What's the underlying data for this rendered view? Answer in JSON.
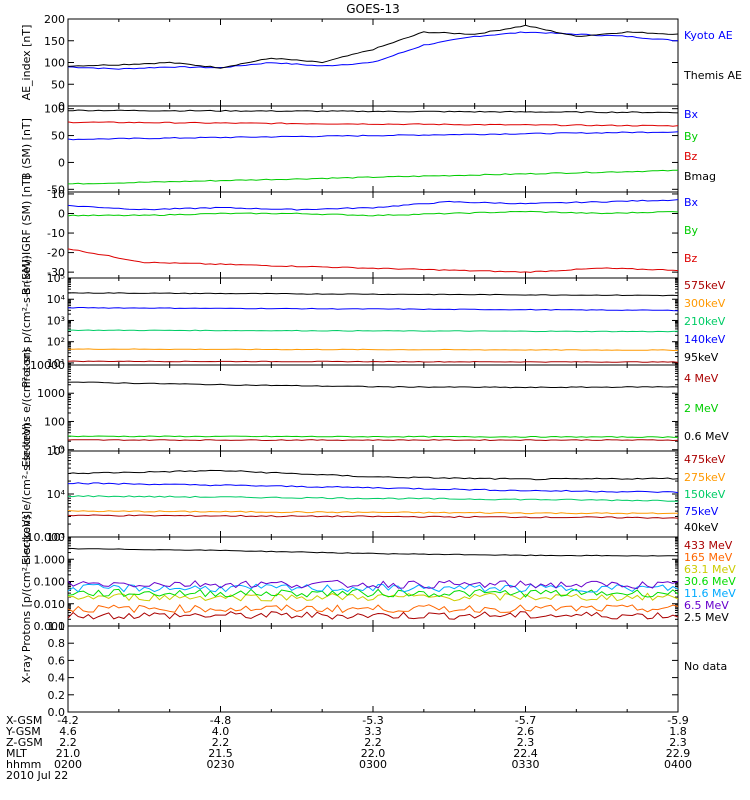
{
  "title": "GOES-13",
  "time_range": {
    "start": "0200",
    "end": "0400"
  },
  "chart_data": [
    {
      "type": "line",
      "ylabel": "AE_index [nT]",
      "yscale": "linear",
      "ylim": [
        0,
        200
      ],
      "yticks": [
        "0",
        "50",
        "100",
        "150",
        "200"
      ],
      "series": [
        {
          "name": "Kyoto AE",
          "color": "#0000ff",
          "x": [
            "0200",
            "0210",
            "0220",
            "0230",
            "0240",
            "0250",
            "0300",
            "0310",
            "0320",
            "0330",
            "0340",
            "0350",
            "0400"
          ],
          "values": [
            90,
            85,
            90,
            88,
            100,
            92,
            100,
            140,
            160,
            170,
            165,
            160,
            150
          ]
        },
        {
          "name": "Themis AE",
          "color": "#000000",
          "x": [
            "0200",
            "0210",
            "0220",
            "0230",
            "0240",
            "0250",
            "0300",
            "0310",
            "0320",
            "0330",
            "0340",
            "0350",
            "0400"
          ],
          "values": [
            92,
            95,
            100,
            88,
            110,
            100,
            130,
            170,
            165,
            185,
            160,
            170,
            165
          ]
        }
      ]
    },
    {
      "type": "line",
      "ylabel": "B (SM) [nT]",
      "yscale": "linear",
      "ylim": [
        -55,
        105
      ],
      "yticks": [
        "-50",
        "0",
        "50",
        "100"
      ],
      "series": [
        {
          "name": "Bx",
          "color": "#0000ff",
          "x": [
            "0200",
            "0400"
          ],
          "values": [
            43,
            57
          ]
        },
        {
          "name": "By",
          "color": "#00cc00",
          "x": [
            "0200",
            "0400"
          ],
          "values": [
            -40,
            -15
          ]
        },
        {
          "name": "Bz",
          "color": "#dd0000",
          "x": [
            "0200",
            "0400"
          ],
          "values": [
            75,
            68
          ]
        },
        {
          "name": "Bmag",
          "color": "#000000",
          "x": [
            "0200",
            "0400"
          ],
          "values": [
            97,
            93
          ]
        }
      ]
    },
    {
      "type": "line",
      "ylabel": "B (SM)-IGRF (SM) [nT]",
      "yscale": "linear",
      "ylim": [
        -33,
        11
      ],
      "yticks": [
        "-30",
        "-20",
        "-10",
        "0",
        "10"
      ],
      "series": [
        {
          "name": "Bx",
          "color": "#0000ff",
          "x": [
            "0200",
            "0215",
            "0230",
            "0245",
            "0300",
            "0315",
            "0330",
            "0345",
            "0400"
          ],
          "values": [
            4,
            2,
            3,
            2,
            3,
            6,
            5,
            6,
            7
          ]
        },
        {
          "name": "By",
          "color": "#00cc00",
          "x": [
            "0200",
            "0215",
            "0230",
            "0245",
            "0300",
            "0315",
            "0330",
            "0345",
            "0400"
          ],
          "values": [
            -1,
            -1,
            0,
            0,
            -1,
            0,
            1,
            0,
            1
          ]
        },
        {
          "name": "Bz",
          "color": "#dd0000",
          "x": [
            "0200",
            "0215",
            "0230",
            "0245",
            "0300",
            "0315",
            "0330",
            "0345",
            "0400"
          ],
          "values": [
            -18,
            -25,
            -26,
            -27,
            -28,
            -29,
            -30,
            -28,
            -29
          ]
        }
      ]
    },
    {
      "type": "line",
      "ylabel": "Protons p/(cm²-s-sr-keV)",
      "yscale": "log",
      "ylim": [
        8,
        100000
      ],
      "yticks": [
        "10¹",
        "10²",
        "10³",
        "10⁴",
        "10⁵"
      ],
      "tick_values": [
        10,
        100,
        1000,
        10000,
        100000
      ],
      "series": [
        {
          "name": "575keV",
          "color": "#aa0000",
          "x": [
            "0200",
            "0400"
          ],
          "values": [
            12,
            11
          ]
        },
        {
          "name": "300keV",
          "color": "#ff9900",
          "x": [
            "0200",
            "0400"
          ],
          "values": [
            45,
            40
          ]
        },
        {
          "name": "210keV",
          "color": "#00cc66",
          "x": [
            "0200",
            "0400"
          ],
          "values": [
            350,
            300
          ]
        },
        {
          "name": "140keV",
          "color": "#0000ff",
          "x": [
            "0200",
            "0400"
          ],
          "values": [
            4000,
            3000
          ]
        },
        {
          "name": "95keV",
          "color": "#000000",
          "x": [
            "0200",
            "0400"
          ],
          "values": [
            20000,
            15000
          ]
        }
      ]
    },
    {
      "type": "line",
      "ylabel": "Electrons e/(cm²-s-sr)",
      "yscale": "log",
      "ylim": [
        9,
        10000
      ],
      "yticks": [
        "10",
        "100",
        "1000",
        "10000"
      ],
      "tick_values": [
        10,
        100,
        1000,
        10000
      ],
      "series": [
        {
          "name": "4 MeV",
          "color": "#aa0000",
          "x": [
            "0200",
            "0400"
          ],
          "values": [
            22,
            22
          ]
        },
        {
          "name": "2 MeV",
          "color": "#00cc00",
          "x": [
            "0200",
            "0400"
          ],
          "values": [
            30,
            28
          ]
        },
        {
          "name": "0.6 MeV",
          "color": "#000000",
          "x": [
            "0200",
            "0230",
            "0300",
            "0330",
            "0400"
          ],
          "values": [
            2500,
            2000,
            1700,
            1600,
            1700
          ]
        }
      ]
    },
    {
      "type": "line",
      "ylabel": "Electrons e/(cm²-s-sr-keV)",
      "yscale": "log",
      "ylim": [
        1000,
        100000
      ],
      "yticks": [
        "10³",
        "10⁴",
        "10⁵"
      ],
      "tick_values": [
        1000,
        10000,
        100000
      ],
      "series": [
        {
          "name": "475keV",
          "color": "#aa0000",
          "x": [
            "0200",
            "0400"
          ],
          "values": [
            3200,
            2800
          ]
        },
        {
          "name": "275keV",
          "color": "#ff9900",
          "x": [
            "0200",
            "0400"
          ],
          "values": [
            4000,
            3500
          ]
        },
        {
          "name": "150keV",
          "color": "#00cc66",
          "x": [
            "0200",
            "0400"
          ],
          "values": [
            9000,
            7000
          ]
        },
        {
          "name": "75keV",
          "color": "#0000ff",
          "x": [
            "0200",
            "0230",
            "0300",
            "0330",
            "0400"
          ],
          "values": [
            18000,
            16000,
            14000,
            12000,
            11000
          ]
        },
        {
          "name": "40keV",
          "color": "#000000",
          "x": [
            "0200",
            "0230",
            "0300",
            "0330",
            "0400"
          ],
          "values": [
            30000,
            35000,
            25000,
            22000,
            23000
          ]
        }
      ]
    },
    {
      "type": "line",
      "ylabel": "Protons [p/(cm²-s-sr-keV)]",
      "yscale": "log",
      "ylim": [
        0.001,
        10
      ],
      "yticks": [
        "0.001",
        "0.010",
        "0.100",
        "1.000",
        "10.000"
      ],
      "tick_values": [
        0.001,
        0.01,
        0.1,
        1,
        10
      ],
      "series": [
        {
          "name": "433 MeV",
          "color": "#aa0000",
          "x": [
            "0200",
            "0400"
          ],
          "values": [
            0.003,
            0.003
          ]
        },
        {
          "name": "165 MeV",
          "color": "#ff6600",
          "x": [
            "0200",
            "0400"
          ],
          "values": [
            0.006,
            0.006
          ]
        },
        {
          "name": "63.1 MeV",
          "color": "#cccc00",
          "x": [
            "0200",
            "0400"
          ],
          "values": [
            0.02,
            0.02
          ]
        },
        {
          "name": "30.6 MeV",
          "color": "#00dd00",
          "x": [
            "0200",
            "0400"
          ],
          "values": [
            0.03,
            0.03
          ]
        },
        {
          "name": "11.6 MeV",
          "color": "#00aaff",
          "x": [
            "0200",
            "0400"
          ],
          "values": [
            0.05,
            0.05
          ]
        },
        {
          "name": "6.5 MeV",
          "color": "#6600cc",
          "x": [
            "0200",
            "0400"
          ],
          "values": [
            0.08,
            0.07
          ]
        },
        {
          "name": "2.5 MeV",
          "color": "#000000",
          "x": [
            "0200",
            "0230",
            "0300",
            "0330",
            "0400"
          ],
          "values": [
            3.0,
            2.5,
            1.8,
            1.5,
            1.4
          ]
        }
      ]
    },
    {
      "type": "line",
      "ylabel": "X-ray",
      "yscale": "linear",
      "ylim": [
        0,
        1
      ],
      "yticks": [
        "0.0",
        "0.2",
        "0.4",
        "0.6",
        "0.8",
        "1.0"
      ],
      "note": "No data",
      "series": []
    }
  ],
  "footer": {
    "rows": [
      {
        "label": "X-GSM",
        "values": [
          "-4.2",
          "-4.8",
          "-5.3",
          "-5.7",
          "-5.9"
        ]
      },
      {
        "label": "Y-GSM",
        "values": [
          "4.6",
          "4.0",
          "3.3",
          "2.6",
          "1.8"
        ]
      },
      {
        "label": "Z-GSM",
        "values": [
          "2.2",
          "2.2",
          "2.2",
          "2.3",
          "2.3"
        ]
      },
      {
        "label": "MLT",
        "values": [
          "21.0",
          "21.5",
          "22.0",
          "22.4",
          "22.9"
        ]
      },
      {
        "label": "hhmm",
        "values": [
          "0200",
          "0230",
          "0300",
          "0330",
          "0400"
        ]
      }
    ],
    "date": "2010 Jul 22"
  }
}
